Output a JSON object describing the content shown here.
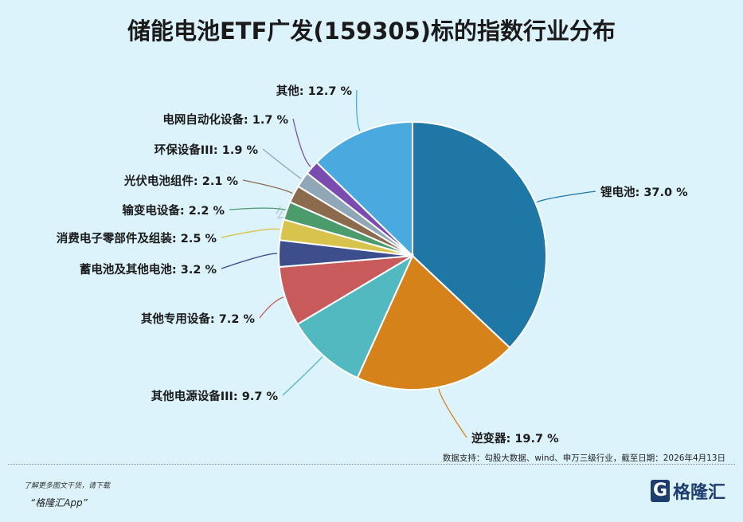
{
  "chart_data": {
    "type": "pie",
    "title": "储能电池ETF广发(159305)标的指数行业分布",
    "start": "top",
    "direction": "clockwise",
    "slices": [
      {
        "label": "锂电池",
        "value": 37.0,
        "text": "锂电池: 37.0 %",
        "color": "#1f77a6"
      },
      {
        "label": "逆变器",
        "value": 19.7,
        "text": "逆变器: 19.7 %",
        "color": "#d5821b"
      },
      {
        "label": "其他电源设备III",
        "value": 9.7,
        "text": "其他电源设备III: 9.7 %",
        "color": "#52b9c1"
      },
      {
        "label": "其他专用设备",
        "value": 7.2,
        "text": "其他专用设备: 7.2 %",
        "color": "#c85a5c"
      },
      {
        "label": "蓄电池及其他电池",
        "value": 3.2,
        "text": "蓄电池及其他电池: 3.2 %",
        "color": "#3c4f8c"
      },
      {
        "label": "消费电子零部件及组装",
        "value": 2.5,
        "text": "消费电子零部件及组装: 2.5 %",
        "color": "#d8c34d"
      },
      {
        "label": "输变电设备",
        "value": 2.2,
        "text": "输变电设备: 2.2 %",
        "color": "#4b9b6c"
      },
      {
        "label": "光伏电池组件",
        "value": 2.1,
        "text": "光伏电池组件: 2.1 %",
        "color": "#8b6b4b"
      },
      {
        "label": "环保设备III",
        "value": 1.9,
        "text": "环保设备III: 1.9 %",
        "color": "#8fa7b7"
      },
      {
        "label": "电网自动化设备",
        "value": 1.7,
        "text": "电网自动化设备: 1.7 %",
        "color": "#7b4cb0"
      },
      {
        "label": "其他",
        "value": 12.7,
        "text": "其他: 12.7 %",
        "color": "#4aa9df"
      }
    ]
  },
  "watermark": "勾股大数据",
  "source": "数据支持：勾股大数据、wind、申万三级行业，截至日期：2026年4月13日",
  "promo_line1": "了解更多图文干货，请下载",
  "promo_line2": "“格隆汇App”",
  "logo_text": "格隆汇",
  "logo_mark": "G"
}
